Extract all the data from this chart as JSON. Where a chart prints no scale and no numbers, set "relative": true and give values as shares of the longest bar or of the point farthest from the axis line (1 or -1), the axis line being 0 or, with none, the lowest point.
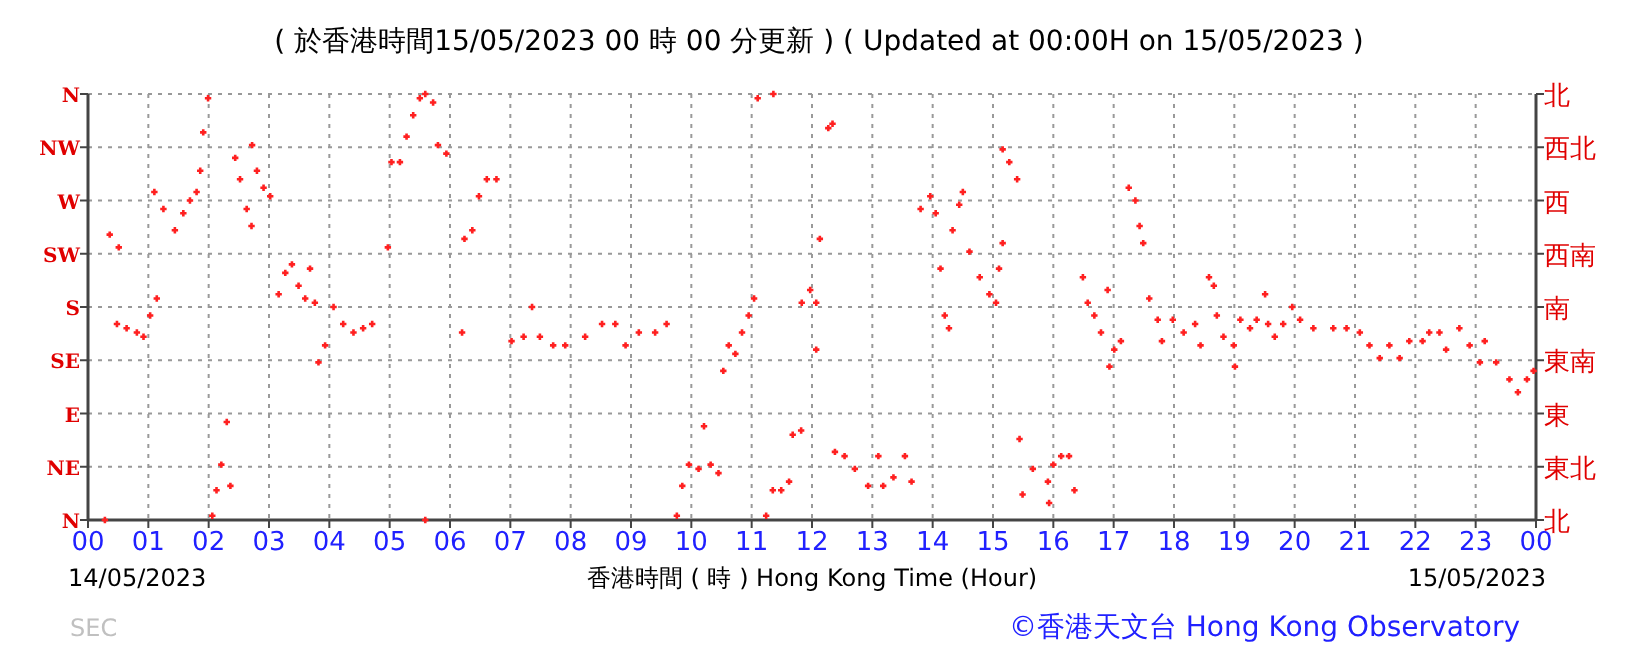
{
  "chart_data": {
    "type": "scatter",
    "title": "( 於香港時間15/05/2023 00 時 00 分更新 ) ( Updated at 00:00H on 15/05/2023 )",
    "xlabel": "香港時間 ( 時 )  Hong Kong Time (Hour)",
    "annotations": [
      "14/05/2023",
      "15/05/2023",
      "SEC",
      "©香港天文台 Hong Kong Observatory",
      "N",
      "NE",
      "E",
      "SE",
      "S",
      "SW",
      "W",
      "NW",
      "N",
      "北",
      "東北",
      "東",
      "東南",
      "南",
      "西南",
      "西",
      "西北",
      "北"
    ],
    "xlim": [
      0,
      24
    ],
    "xticks": [
      {
        "value": 0,
        "label": "00"
      },
      {
        "value": 1,
        "label": "01"
      },
      {
        "value": 2,
        "label": "02"
      },
      {
        "value": 3,
        "label": "03"
      },
      {
        "value": 4,
        "label": "04"
      },
      {
        "value": 5,
        "label": "05"
      },
      {
        "value": 6,
        "label": "06"
      },
      {
        "value": 7,
        "label": "07"
      },
      {
        "value": 8,
        "label": "08"
      },
      {
        "value": 9,
        "label": "09"
      },
      10,
      11,
      12,
      13,
      14,
      15,
      16,
      17,
      18,
      19,
      20,
      21,
      22,
      23,
      {
        "value": 24,
        "label": "00"
      }
    ],
    "relative": true,
    "grid": true,
    "marker": "cross",
    "series": [
      {
        "color": "#ff2020",
        "x": [
          0.28,
          0.36,
          0.51,
          0.48,
          0.64,
          0.81,
          0.92,
          1.03,
          1.14,
          1.1,
          1.25,
          1.44,
          1.58,
          1.69,
          1.8,
          1.86,
          1.91,
          1.99,
          2.06,
          2.13,
          2.21,
          2.3,
          2.36,
          2.44,
          2.52,
          2.63,
          2.71,
          2.72,
          2.8,
          2.91,
          3.02,
          3.16,
          3.27,
          3.38,
          3.49,
          3.6,
          3.68,
          3.76,
          3.82,
          3.93,
          4.07,
          4.23,
          4.4,
          4.56,
          4.71,
          4.97,
          5.03,
          5.17,
          5.28,
          5.39,
          5.5,
          5.59,
          5.72,
          5.8,
          5.94,
          5.59,
          6.2,
          6.24,
          6.37,
          6.48,
          6.61,
          6.77,
          7.02,
          7.22,
          7.36,
          7.49,
          7.71,
          7.91,
          8.24,
          8.52,
          8.74,
          8.91,
          9.13,
          9.4,
          9.59,
          9.76,
          9.85,
          9.96,
          10.12,
          10.21,
          10.32,
          10.45,
          10.53,
          10.62,
          10.73,
          10.84,
          10.95,
          11.04,
          11.1,
          11.36,
          11.24,
          11.35,
          11.49,
          11.62,
          11.68,
          11.82,
          11.83,
          11.97,
          12.07,
          12.07,
          12.13,
          12.27,
          12.34,
          12.38,
          12.54,
          12.71,
          12.93,
          13.1,
          13.18,
          13.35,
          13.54,
          13.65,
          13.8,
          13.96,
          14.05,
          14.13,
          14.2,
          14.27,
          14.33,
          14.44,
          14.5,
          14.61,
          14.78,
          14.94,
          15.05,
          15.1,
          15.16,
          15.16,
          15.27,
          15.4,
          15.44,
          15.49,
          15.66,
          15.91,
          15.93,
          16.0,
          16.13,
          16.26,
          16.35,
          16.49,
          16.57,
          16.68,
          16.79,
          16.9,
          16.93,
          17.01,
          17.12,
          17.25,
          17.36,
          17.43,
          17.49,
          17.59,
          17.73,
          17.8,
          17.98,
          18.16,
          18.35,
          18.44,
          18.58,
          18.66,
          18.71,
          18.82,
          18.99,
          19.01,
          19.1,
          19.26,
          19.37,
          19.51,
          19.56,
          19.67,
          19.81,
          19.96,
          20.09,
          20.31,
          20.64,
          20.86,
          21.08,
          21.24,
          21.41,
          21.57,
          21.74,
          21.9,
          22.12,
          22.23,
          22.4,
          22.51,
          22.73,
          22.9,
          23.07,
          23.15,
          23.34,
          23.56,
          23.7,
          23.85,
          23.96
        ],
        "values": [
          0,
          0.67,
          0.64,
          0.46,
          0.45,
          0.44,
          0.43,
          0.48,
          0.52,
          0.77,
          0.73,
          0.68,
          0.72,
          0.75,
          0.77,
          0.82,
          0.91,
          0.99,
          0.01,
          0.07,
          0.13,
          0.23,
          0.08,
          0.85,
          0.8,
          0.73,
          0.69,
          0.88,
          0.82,
          0.78,
          0.76,
          0.53,
          0.58,
          0.6,
          0.55,
          0.52,
          0.59,
          0.51,
          0.37,
          0.41,
          0.5,
          0.46,
          0.44,
          0.45,
          0.46,
          0.64,
          0.84,
          0.84,
          0.9,
          0.95,
          0.99,
          1,
          0.98,
          0.88,
          0.86,
          0,
          0.44,
          0.66,
          0.68,
          0.76,
          0.8,
          0.8,
          0.42,
          0.43,
          0.5,
          0.43,
          0.41,
          0.41,
          0.43,
          0.46,
          0.46,
          0.41,
          0.44,
          0.44,
          0.46,
          0.01,
          0.08,
          0.13,
          0.12,
          0.22,
          0.13,
          0.11,
          0.35,
          0.41,
          0.39,
          0.44,
          0.48,
          0.52,
          0.99,
          1,
          0.01,
          0.07,
          0.07,
          0.09,
          0.2,
          0.21,
          0.51,
          0.54,
          0.51,
          0.4,
          0.66,
          0.92,
          0.93,
          0.16,
          0.15,
          0.12,
          0.08,
          0.15,
          0.08,
          0.1,
          0.15,
          0.09,
          0.73,
          0.76,
          0.72,
          0.59,
          0.48,
          0.45,
          0.68,
          0.74,
          0.77,
          0.63,
          0.57,
          0.53,
          0.51,
          0.59,
          0.65,
          0.87,
          0.84,
          0.8,
          0.19,
          0.06,
          0.12,
          0.09,
          0.04,
          0.13,
          0.15,
          0.15,
          0.07,
          0.57,
          0.51,
          0.48,
          0.44,
          0.54,
          0.36,
          0.4,
          0.42,
          0.78,
          0.75,
          0.69,
          0.65,
          0.52,
          0.47,
          0.42,
          0.47,
          0.44,
          0.46,
          0.41,
          0.57,
          0.55,
          0.48,
          0.43,
          0.41,
          0.36,
          0.47,
          0.45,
          0.47,
          0.53,
          0.46,
          0.43,
          0.46,
          0.5,
          0.47,
          0.45,
          0.45,
          0.45,
          0.44,
          0.41,
          0.38,
          0.41,
          0.38,
          0.42,
          0.42,
          0.44,
          0.44,
          0.4,
          0.45,
          0.41,
          0.37,
          0.42,
          0.37,
          0.33,
          0.3,
          0.33,
          0.35
        ]
      }
    ]
  }
}
